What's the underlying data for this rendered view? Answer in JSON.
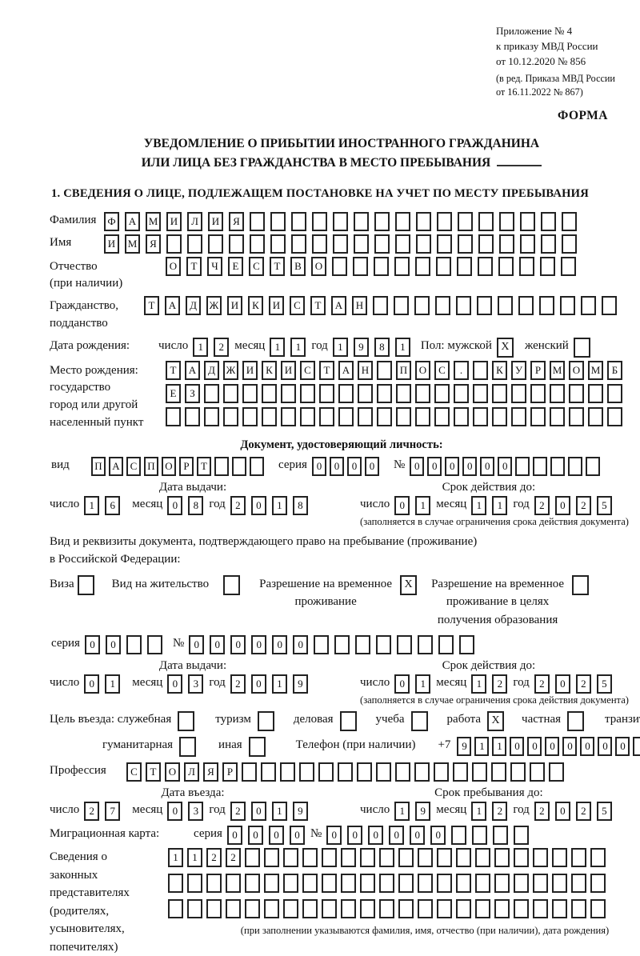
{
  "header": {
    "appendix_line1": "Приложение № 4",
    "appendix_line2": "к приказу МВД России",
    "appendix_line3": "от 10.12.2020 № 856",
    "revision_line1": "(в ред. Приказа МВД России",
    "revision_line2": "от 16.11.2022 № 867)",
    "form_label": "ФОРМА"
  },
  "title": {
    "line1": "УВЕДОМЛЕНИЕ О ПРИБЫТИИ ИНОСТРАННОГО ГРАЖДАНИНА",
    "line2": "ИЛИ ЛИЦА БЕЗ ГРАЖДАНСТВА В МЕСТО ПРЕБЫВАНИЯ"
  },
  "section1": {
    "heading": "1. СВЕДЕНИЯ О ЛИЦЕ, ПОДЛЕЖАЩЕМ ПОСТАНОВКЕ НА УЧЕТ ПО МЕСТУ ПРЕБЫВАНИЯ"
  },
  "labels": {
    "day": "число",
    "month": "месяц",
    "year": "год",
    "series": "серия",
    "number": "№",
    "issue_date": "Дата выдачи:",
    "valid_until": "Срок действия до:",
    "valid_note": "(заполняется в случае ограничения срока действия документа)"
  },
  "person": {
    "surname_label": "Фамилия",
    "surname_cells": [
      "Ф",
      "А",
      "М",
      "И",
      "Л",
      "И",
      "Я",
      "",
      "",
      "",
      "",
      "",
      "",
      "",
      "",
      "",
      "",
      "",
      "",
      "",
      "",
      "",
      ""
    ],
    "name_label": "Имя",
    "name_cells": [
      "И",
      "М",
      "Я",
      "",
      "",
      "",
      "",
      "",
      "",
      "",
      "",
      "",
      "",
      "",
      "",
      "",
      "",
      "",
      "",
      "",
      "",
      "",
      ""
    ],
    "patronymic_label1": "Отчество",
    "patronymic_label2": "(при наличии)",
    "patronymic_cells": [
      "О",
      "Т",
      "Ч",
      "Е",
      "С",
      "Т",
      "В",
      "О",
      "",
      "",
      "",
      "",
      "",
      "",
      "",
      "",
      "",
      "",
      "",
      ""
    ],
    "citizenship_label1": "Гражданство,",
    "citizenship_label2": "подданство",
    "citizenship_cells": [
      "Т",
      "А",
      "Д",
      "Ж",
      "И",
      "К",
      "И",
      "С",
      "Т",
      "А",
      "Н",
      "",
      "",
      "",
      "",
      "",
      "",
      "",
      "",
      "",
      "",
      "",
      ""
    ],
    "birth_date_label": "Дата рождения:",
    "birth_day": [
      "1",
      "2"
    ],
    "birth_month": [
      "1",
      "1"
    ],
    "birth_year": [
      "1",
      "9",
      "8",
      "1"
    ],
    "sex_male_label": "Пол: мужской",
    "sex_male": [
      "X"
    ],
    "sex_female_label": "женский",
    "sex_female": [
      ""
    ],
    "birth_place_label1": "Место рождения:",
    "birth_place_label2": "государство",
    "birth_place_label3": "город или другой",
    "birth_place_label4": "населенный пункт",
    "birth_place_row1": [
      "Т",
      "А",
      "Д",
      "Ж",
      "И",
      "К",
      "И",
      "С",
      "Т",
      "А",
      "Н",
      "",
      "П",
      "О",
      "С",
      ".",
      "",
      "К",
      "У",
      "Р",
      "М",
      "О",
      "М",
      "Б"
    ],
    "birth_place_row2": [
      "Е",
      "З",
      "",
      "",
      "",
      "",
      "",
      "",
      "",
      "",
      "",
      "",
      "",
      "",
      "",
      "",
      "",
      "",
      "",
      "",
      "",
      "",
      "",
      ""
    ],
    "birth_place_row3": [
      "",
      "",
      "",
      "",
      "",
      "",
      "",
      "",
      "",
      "",
      "",
      "",
      "",
      "",
      "",
      "",
      "",
      "",
      "",
      "",
      "",
      "",
      "",
      ""
    ]
  },
  "identity_doc": {
    "heading": "Документ, удостоверяющий личность:",
    "type_label": "вид",
    "type_cells": [
      "П",
      "А",
      "С",
      "П",
      "О",
      "Р",
      "Т",
      "",
      "",
      ""
    ],
    "series_cells": [
      "0",
      "0",
      "0",
      "0"
    ],
    "number_cells": [
      "0",
      "0",
      "0",
      "0",
      "0",
      "0",
      "",
      "",
      "",
      "",
      ""
    ],
    "issue_day": [
      "1",
      "6"
    ],
    "issue_month": [
      "0",
      "8"
    ],
    "issue_year": [
      "2",
      "0",
      "1",
      "8"
    ],
    "valid_day": [
      "0",
      "1"
    ],
    "valid_month": [
      "1",
      "1"
    ],
    "valid_year": [
      "2",
      "0",
      "2",
      "5"
    ]
  },
  "residence_doc": {
    "intro_line1": "Вид и реквизиты документа, подтверждающего право на пребывание (проживание)",
    "intro_line2": "в Российской Федерации:",
    "visa_label": "Виза",
    "visa": [
      ""
    ],
    "residence_permit_label": "Вид на жительство",
    "residence_permit": [
      ""
    ],
    "temp_permit_label1": "Разрешение на временное",
    "temp_permit_label2": "проживание",
    "temp_permit": [
      "X"
    ],
    "edu_permit_label1": "Разрешение на временное",
    "edu_permit_label2": "проживание в целях",
    "edu_permit_label3": "получения образования",
    "edu_permit": [
      ""
    ],
    "series_cells": [
      "0",
      "0",
      "",
      ""
    ],
    "number_cells": [
      "0",
      "0",
      "0",
      "0",
      "0",
      "0",
      "",
      "",
      "",
      "",
      "",
      "",
      "",
      ""
    ],
    "issue_day": [
      "0",
      "1"
    ],
    "issue_month": [
      "0",
      "3"
    ],
    "issue_year": [
      "2",
      "0",
      "1",
      "9"
    ],
    "valid_day": [
      "0",
      "1"
    ],
    "valid_month": [
      "1",
      "2"
    ],
    "valid_year": [
      "2",
      "0",
      "2",
      "5"
    ]
  },
  "visit": {
    "purpose_label": "Цель въезда: служебная",
    "official": [
      ""
    ],
    "tourism_label": "туризм",
    "tourism": [
      ""
    ],
    "business_label": "деловая",
    "business": [
      ""
    ],
    "study_label": "учеба",
    "study": [
      ""
    ],
    "work_label": "работа",
    "work": [
      "X"
    ],
    "private_label": "частная",
    "private": [
      ""
    ],
    "transit_label": "транзит",
    "transit": [
      ""
    ],
    "humanitarian_label": "гуманитарная",
    "humanitarian": [
      ""
    ],
    "other_label": "иная",
    "other": [
      ""
    ],
    "phone_label": "Телефон (при наличии)",
    "phone_prefix": "+7",
    "phone_cells": [
      "9",
      "1",
      "1",
      "0",
      "0",
      "0",
      "0",
      "0",
      "0",
      "0",
      ""
    ],
    "profession_label": "Профессия",
    "profession_cells": [
      "С",
      "Т",
      "О",
      "Л",
      "Я",
      "Р",
      "",
      "",
      "",
      "",
      "",
      "",
      "",
      "",
      "",
      "",
      "",
      "",
      "",
      "",
      "",
      "",
      ""
    ],
    "entry_date_label": "Дата въезда:",
    "entry_day": [
      "2",
      "7"
    ],
    "entry_month": [
      "0",
      "3"
    ],
    "entry_year": [
      "2",
      "0",
      "1",
      "9"
    ],
    "stay_until_label": "Срок пребывания до:",
    "stay_day": [
      "1",
      "9"
    ],
    "stay_month": [
      "1",
      "2"
    ],
    "stay_year": [
      "2",
      "0",
      "2",
      "5"
    ]
  },
  "migration_card": {
    "label": "Миграционная карта:",
    "series_cells": [
      "0",
      "0",
      "0",
      "0"
    ],
    "number_cells": [
      "0",
      "0",
      "0",
      "0",
      "0",
      "0",
      "",
      "",
      "",
      ""
    ]
  },
  "legal_reps": {
    "label_lines": [
      "Сведения о",
      "законных",
      "представителях",
      "(родителях,",
      "усыновителях,",
      "попечителях)"
    ],
    "row1": [
      "1",
      "1",
      "2",
      "2",
      "",
      "",
      "",
      "",
      "",
      "",
      "",
      "",
      "",
      "",
      "",
      "",
      "",
      "",
      "",
      "",
      "",
      "",
      ""
    ],
    "row2": [
      "",
      "",
      "",
      "",
      "",
      "",
      "",
      "",
      "",
      "",
      "",
      "",
      "",
      "",
      "",
      "",
      "",
      "",
      "",
      "",
      "",
      "",
      ""
    ],
    "row3": [
      "",
      "",
      "",
      "",
      "",
      "",
      "",
      "",
      "",
      "",
      "",
      "",
      "",
      "",
      "",
      "",
      "",
      "",
      "",
      "",
      "",
      "",
      ""
    ],
    "note": "(при заполнении указываются фамилия, имя, отчество (при наличии), дата рождения)"
  }
}
